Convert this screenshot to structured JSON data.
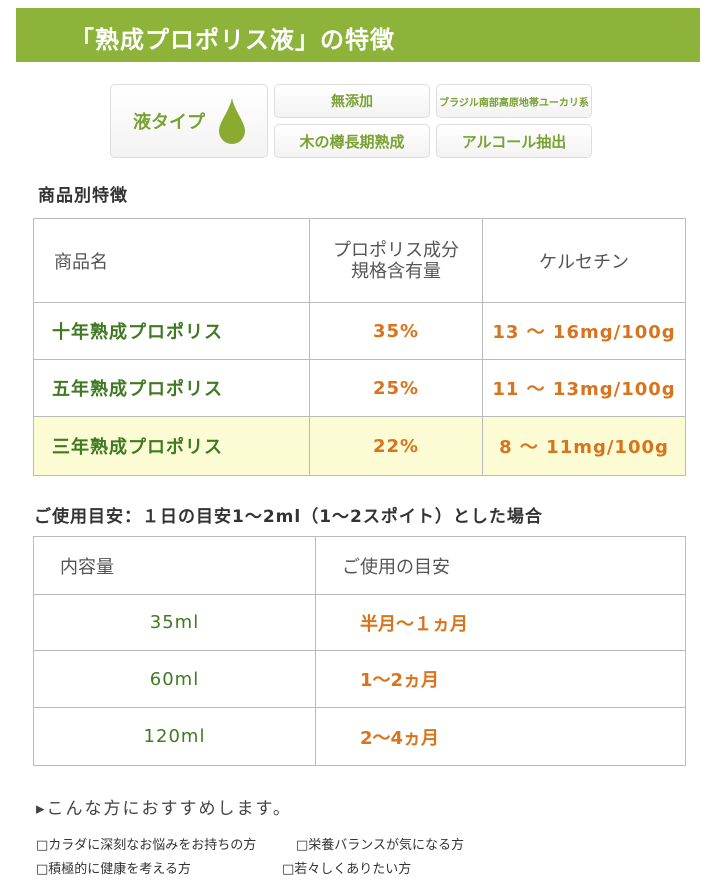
{
  "header": {
    "title": "「熟成プロポリス液」の特徴"
  },
  "badges": {
    "main": "液タイプ",
    "main_icon": "droplet-icon",
    "items": [
      "無添加",
      "ブラジル南部高原地帯ユーカリ系",
      "木の樽長期熟成",
      "アルコール抽出"
    ]
  },
  "features": {
    "title": "商品別特徴",
    "headers": [
      "商品名",
      "プロポリス成分\n規格含有量",
      "ケルセチン"
    ],
    "rows": [
      [
        "十年熟成プロポリス",
        "35%",
        "13 ～ 16mg/100g"
      ],
      [
        "五年熟成プロポリス",
        "25%",
        "11 ～ 13mg/100g"
      ],
      [
        "三年熟成プロポリス",
        "22%",
        "8 ～ 11mg/100g"
      ]
    ]
  },
  "usage": {
    "title": "ご使用目安：１日の目安1～2ml（1～2スポイト）とした場合",
    "headers": [
      "内容量",
      "ご使用の目安"
    ],
    "rows": [
      [
        "35ml",
        "半月～１ヵ月"
      ],
      [
        "60ml",
        "1～2ヵ月"
      ],
      [
        "120ml",
        "2～4ヵ月"
      ]
    ]
  },
  "recommend": {
    "title": "▸こんな方におすすめします。",
    "items": [
      "□カラダに深刻なお悩みをお持ちの方",
      "□栄養バランスが気になる方",
      "□積極的に健康を考える方",
      "□若々しくありたい方"
    ]
  },
  "colors": {
    "brand": "#8db33a",
    "highlight": "#fbfbd4",
    "value": "#d9731c"
  }
}
